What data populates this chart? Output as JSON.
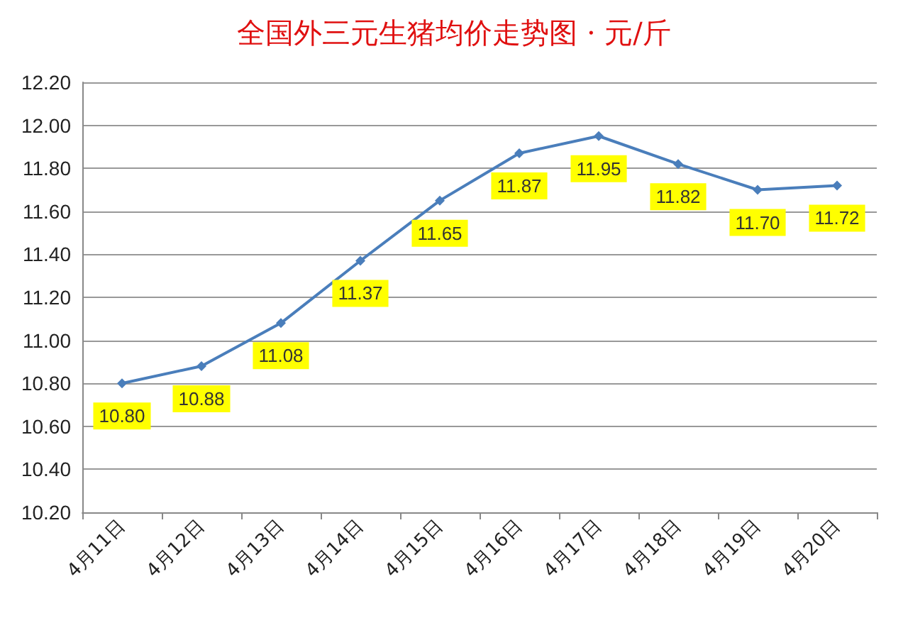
{
  "chart_data": {
    "type": "line",
    "title": "全国外三元生猪均价走势图 · 元/斤",
    "categories": [
      "4月11日",
      "4月12日",
      "4月13日",
      "4月14日",
      "4月15日",
      "4月16日",
      "4月17日",
      "4月18日",
      "4月19日",
      "4月20日"
    ],
    "series": [
      {
        "color": "#4a7ebb",
        "values": [
          10.8,
          10.88,
          11.08,
          11.37,
          11.65,
          11.87,
          11.95,
          11.82,
          11.7,
          11.72
        ],
        "value_labels": [
          "10.80",
          "10.88",
          "11.08",
          "11.37",
          "11.65",
          "11.87",
          "11.95",
          "11.82",
          "11.70",
          "11.72"
        ]
      }
    ],
    "ylim": [
      10.2,
      12.2
    ],
    "yticks": [
      {
        "value": 10.2,
        "label": "10.20"
      },
      {
        "value": 10.4,
        "label": "10.40"
      },
      {
        "value": 10.6,
        "label": "10.60"
      },
      {
        "value": 10.8,
        "label": "10.80"
      },
      {
        "value": 11,
        "label": "11.00"
      },
      {
        "value": 11.2,
        "label": "11.20"
      },
      {
        "value": 11.4,
        "label": "11.40"
      },
      {
        "value": 11.6,
        "label": "11.60"
      },
      {
        "value": 11.8,
        "label": "11.80"
      },
      {
        "value": 12,
        "label": "12.00"
      },
      {
        "value": 12.2,
        "label": "12.20"
      }
    ],
    "grid": "y",
    "marker": "diamond",
    "line_style": "solid"
  }
}
